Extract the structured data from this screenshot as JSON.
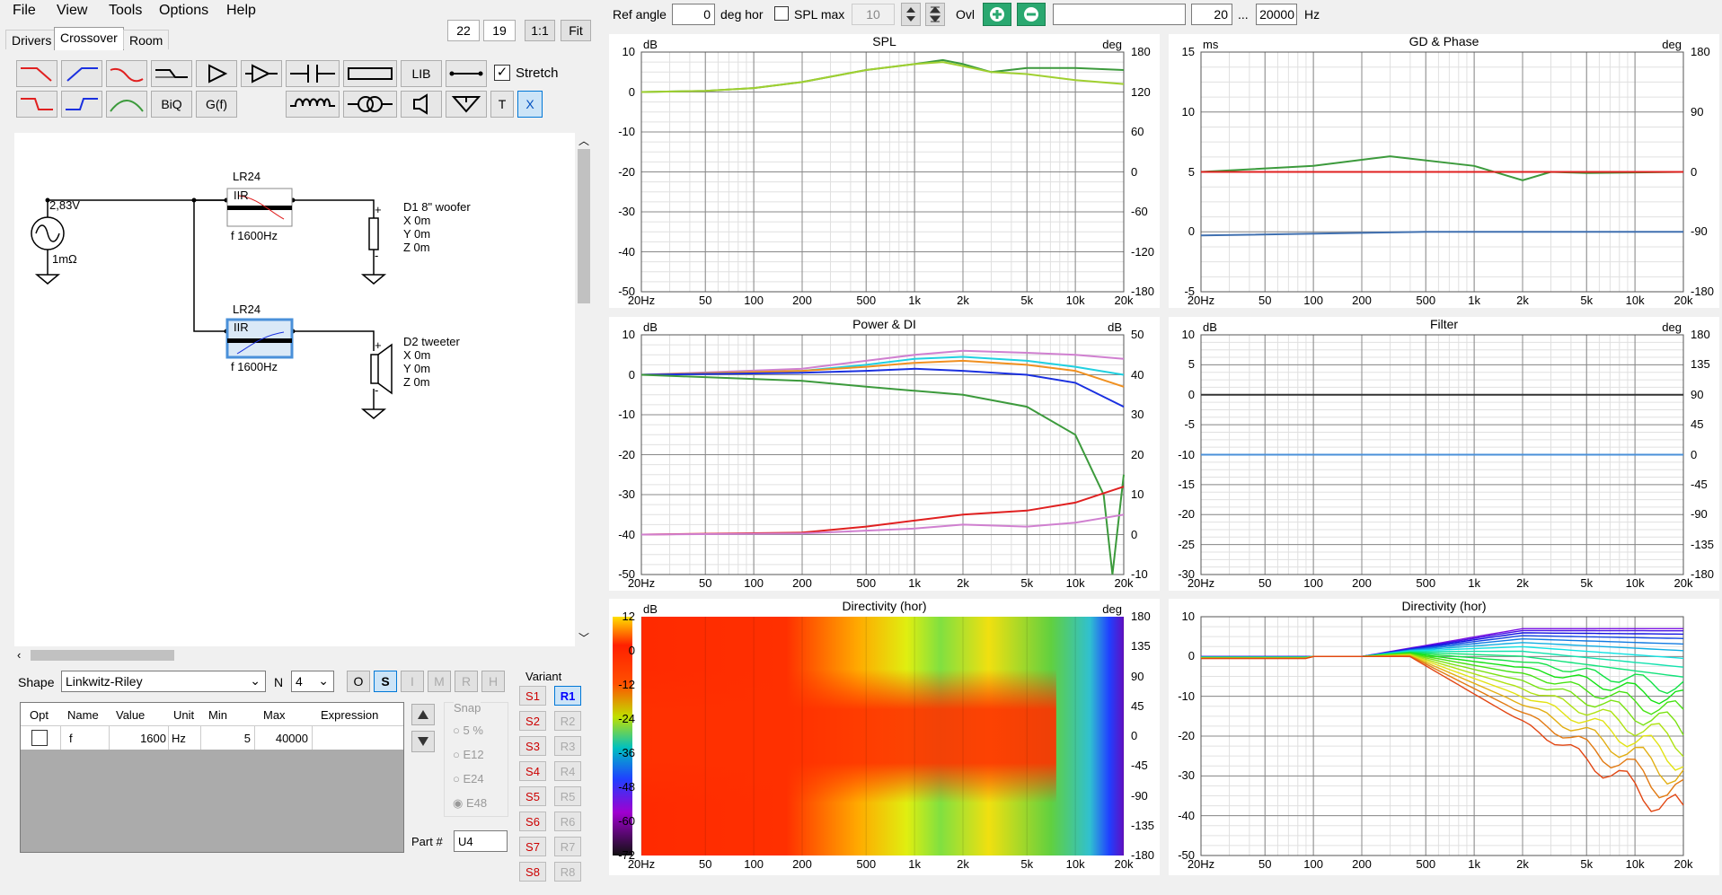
{
  "menu": {
    "file": "File",
    "view": "View",
    "tools": "Tools",
    "options": "Options",
    "help": "Help"
  },
  "tabs": {
    "drivers": "Drivers",
    "crossover": "Crossover",
    "room": "Room"
  },
  "topleft": {
    "n1": "22",
    "n2": "19",
    "ratio": "1:1",
    "fit": "Fit"
  },
  "toolbar": {
    "lib": "LIB",
    "biq": "BiQ",
    "gf": "G(f)",
    "t": "T",
    "x": "X",
    "stretch": "Stretch",
    "stretch_checked": true
  },
  "schematic": {
    "source_voltage": "2,83V",
    "source_impedance": "1mΩ",
    "f1_type": "LR24",
    "f1_mode": "IIR",
    "f1_label": "f   1600Hz",
    "f2_type": "LR24",
    "f2_mode": "IIR",
    "f2_label": "f   1600Hz",
    "d1_name": "D1 8\" woofer",
    "d1_x": "X 0m",
    "d1_y": "Y 0m",
    "d1_z": "Z 0m",
    "d2_name": "D2 tweeter",
    "d2_x": "X 0m",
    "d2_y": "Y 0m",
    "d2_z": "Z 0m",
    "plus": "+",
    "minus": "-"
  },
  "shape": {
    "label": "Shape",
    "value": "Linkwitz-Riley",
    "n_label": "N",
    "n_value": "4",
    "o": "O",
    "s": "S",
    "i": "I",
    "m": "M",
    "r": "R",
    "h": "H"
  },
  "param_table": {
    "headers": [
      "Opt",
      "Name",
      "Value",
      "Unit",
      "Min",
      "Max",
      "Expression"
    ],
    "rows": [
      {
        "opt": false,
        "name": "f",
        "value": "1600",
        "unit": "Hz",
        "min": "5",
        "max": "40000",
        "expression": ""
      }
    ]
  },
  "snap": {
    "label": "Snap",
    "options": [
      "5 %",
      "E12",
      "E24",
      "E48"
    ],
    "selected": "E48"
  },
  "part": {
    "label": "Part #",
    "value": "U4"
  },
  "variant": {
    "label": "Variant",
    "s": [
      "S1",
      "S2",
      "S3",
      "S4",
      "S5",
      "S6",
      "S7",
      "S8"
    ],
    "r": [
      "R1",
      "R2",
      "R3",
      "R4",
      "R5",
      "R6",
      "R7",
      "R8"
    ],
    "active": "R1"
  },
  "topbar": {
    "ref_angle_label": "Ref angle",
    "ref_angle": "0",
    "deg_hor": "deg hor",
    "spl_max_label": "SPL max",
    "spl_max": "10",
    "ovl": "Ovl",
    "freq_lo": "20",
    "dots": "...",
    "freq_hi": "20000",
    "hz": "Hz"
  },
  "colors": {
    "green": "#3c9a3c",
    "red": "#e02020",
    "blue": "#1a30e0",
    "cyan": "#20d0e0",
    "orange": "#f09020",
    "pink": "#d080d0"
  },
  "freq_ticks": [
    "20Hz",
    "50",
    "100",
    "200",
    "500",
    "1k",
    "2k",
    "5k",
    "10k",
    "20k"
  ],
  "charts": [
    {
      "id": "spl",
      "title": "SPL",
      "lunit": "dB",
      "runit": "deg",
      "lticks": [
        "10",
        "0",
        "-10",
        "-20",
        "-30",
        "-40",
        "-50"
      ],
      "rticks": [
        "180",
        "120",
        "60",
        "0",
        "-60",
        "-120",
        "-180"
      ]
    },
    {
      "id": "gd",
      "title": "GD & Phase",
      "lunit": "ms",
      "runit": "deg",
      "lticks": [
        "15",
        "10",
        "5",
        "0",
        "-5"
      ],
      "rticks": [
        "180",
        "90",
        "0",
        "-90",
        "-180"
      ]
    },
    {
      "id": "power",
      "title": "Power & DI",
      "lunit": "dB",
      "runit": "dB",
      "lticks": [
        "10",
        "0",
        "-10",
        "-20",
        "-30",
        "-40",
        "-50"
      ],
      "rticks": [
        "50",
        "40",
        "30",
        "20",
        "10",
        "0",
        "-10"
      ]
    },
    {
      "id": "filter",
      "title": "Filter",
      "lunit": "dB",
      "runit": "deg",
      "lticks": [
        "10",
        "5",
        "0",
        "-5",
        "-10",
        "-15",
        "-20",
        "-25",
        "-30"
      ],
      "rticks": [
        "180",
        "135",
        "90",
        "45",
        "0",
        "-45",
        "-90",
        "-135",
        "-180"
      ]
    },
    {
      "id": "dir_map",
      "title": "Directivity (hor)",
      "lunit": "dB",
      "runit": "deg",
      "lticks": [
        "12",
        "0",
        "-12",
        "-24",
        "-36",
        "-48",
        "-60",
        "-72"
      ],
      "rticks": [
        "180",
        "135",
        "90",
        "45",
        "0",
        "-45",
        "-90",
        "-135",
        "-180"
      ]
    },
    {
      "id": "dir_curves",
      "title": "Directivity (hor)",
      "lunit": "",
      "runit": "",
      "lticks": [
        "10",
        "0",
        "-10",
        "-20",
        "-30",
        "-40",
        "-50"
      ],
      "rticks": []
    }
  ],
  "chart_data": [
    {
      "type": "line",
      "title": "SPL",
      "ylabel": "dB",
      "ylim": [
        -50,
        10
      ],
      "xlim": [
        20,
        20000
      ],
      "xscale": "log",
      "series": [
        {
          "color": "#3c9a3c",
          "x": [
            20,
            50,
            100,
            200,
            500,
            1000,
            1500,
            2000,
            3000,
            5000,
            10000,
            20000
          ],
          "y": [
            0,
            0.3,
            1,
            2.5,
            5.5,
            7,
            8,
            7,
            5,
            6,
            6,
            5.5
          ]
        },
        {
          "color": "#a0d030",
          "x": [
            20,
            50,
            100,
            200,
            500,
            1000,
            1500,
            2000,
            3000,
            5000,
            10000,
            20000
          ],
          "y": [
            0,
            0.3,
            1,
            2.5,
            5.5,
            7,
            7.5,
            6.5,
            5,
            4.5,
            3,
            2
          ]
        }
      ]
    },
    {
      "type": "line",
      "title": "GD & Phase",
      "ylabel": "ms",
      "ylim": [
        -5,
        15
      ],
      "xlim": [
        20,
        20000
      ],
      "xscale": "log",
      "series": [
        {
          "color": "#3c9a3c",
          "x": [
            20,
            100,
            300,
            1000,
            2000,
            3000,
            5000,
            20000
          ],
          "y": [
            5,
            5.5,
            6.3,
            5.5,
            4.3,
            5,
            4.9,
            5
          ]
        },
        {
          "color": "#e02020",
          "x": [
            20,
            20000
          ],
          "y": [
            5,
            5
          ]
        },
        {
          "color": "#4070b0",
          "x": [
            20,
            500,
            20000
          ],
          "y": [
            -0.3,
            0,
            0
          ]
        }
      ]
    },
    {
      "type": "line",
      "title": "Power & DI",
      "ylabel": "dB",
      "ylim": [
        -50,
        10
      ],
      "xlim": [
        20,
        20000
      ],
      "xscale": "log",
      "series": [
        {
          "color": "#d080d0",
          "x": [
            20,
            200,
            500,
            1000,
            2000,
            5000,
            10000,
            20000
          ],
          "y": [
            0,
            1.5,
            3.5,
            5,
            6,
            5.5,
            5,
            4
          ]
        },
        {
          "color": "#20d0e0",
          "x": [
            20,
            200,
            500,
            1000,
            2000,
            5000,
            10000,
            20000
          ],
          "y": [
            0,
            1,
            2.5,
            4,
            4.5,
            3.5,
            2,
            0
          ]
        },
        {
          "color": "#f09020",
          "x": [
            20,
            200,
            500,
            1000,
            2000,
            5000,
            10000,
            20000
          ],
          "y": [
            0,
            1,
            2,
            3,
            3.5,
            2.5,
            1,
            -3
          ]
        },
        {
          "color": "#1a30e0",
          "x": [
            20,
            200,
            500,
            1000,
            2000,
            5000,
            10000,
            20000
          ],
          "y": [
            0,
            0.5,
            1,
            1.5,
            1,
            0,
            -2,
            -8
          ]
        },
        {
          "color": "#3c9a3c",
          "x": [
            20,
            200,
            500,
            1000,
            2000,
            5000,
            10000,
            15000,
            17000,
            20000
          ],
          "y": [
            0,
            -1.5,
            -3,
            -4,
            -5,
            -8,
            -15,
            -30,
            -50,
            -25
          ]
        },
        {
          "color": "#e02020",
          "x": [
            20,
            200,
            500,
            1000,
            2000,
            5000,
            10000,
            20000
          ],
          "y": [
            -40,
            -39.5,
            -38,
            -36.5,
            -35,
            -34,
            -32,
            -28
          ]
        },
        {
          "color": "#d080d0",
          "x": [
            20,
            200,
            500,
            1000,
            2000,
            5000,
            10000,
            20000
          ],
          "y": [
            -40,
            -39.7,
            -39,
            -38.5,
            -37.5,
            -38,
            -37,
            -35
          ]
        }
      ]
    },
    {
      "type": "line",
      "title": "Filter",
      "ylabel": "dB",
      "ylim": [
        -30,
        10
      ],
      "xlim": [
        20,
        20000
      ],
      "xscale": "log",
      "series": [
        {
          "color": "#333333",
          "x": [
            20,
            20000
          ],
          "y": [
            0,
            0
          ]
        },
        {
          "color": "#4a90d9",
          "x": [
            20,
            20000
          ],
          "y": [
            -10,
            -10
          ]
        }
      ]
    },
    {
      "type": "heatmap",
      "title": "Directivity (hor)",
      "ylabel": "deg",
      "zlim": [
        -72,
        12
      ],
      "ylim": [
        -180,
        180
      ],
      "xlim": [
        20,
        20000
      ]
    },
    {
      "type": "line",
      "title": "Directivity (hor)",
      "ylim": [
        -50,
        10
      ],
      "xlim": [
        20,
        20000
      ],
      "xscale": "log"
    }
  ]
}
